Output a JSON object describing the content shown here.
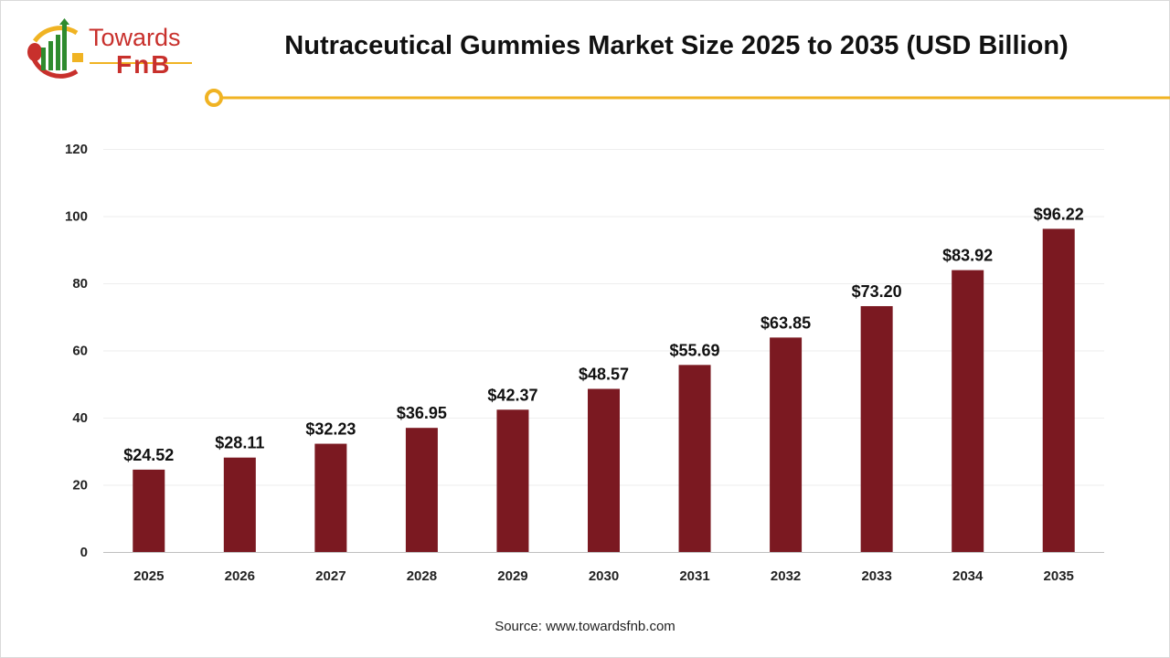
{
  "logo": {
    "line1": "Towards",
    "line2": "FnB"
  },
  "source": "Source: www.towardsfnb.com",
  "colors": {
    "bar": "#7b1921",
    "accent": "#f0b323",
    "grid": "#eeeeee"
  },
  "chart_data": {
    "type": "bar",
    "title": "Nutraceutical Gummies Market Size 2025 to 2035 (USD Billion)",
    "categories": [
      "2025",
      "2026",
      "2027",
      "2028",
      "2029",
      "2030",
      "2031",
      "2032",
      "2033",
      "2034",
      "2035"
    ],
    "values": [
      24.52,
      28.11,
      32.23,
      36.95,
      42.37,
      48.57,
      55.69,
      63.85,
      73.2,
      83.92,
      96.22
    ],
    "data_labels": [
      "$24.52",
      "$28.11",
      "$32.23",
      "$36.95",
      "$42.37",
      "$48.57",
      "$55.69",
      "$63.85",
      "$73.20",
      "$83.92",
      "$96.22"
    ],
    "yticks": [
      0,
      20,
      40,
      60,
      80,
      100,
      120
    ],
    "ylim": [
      0,
      120
    ],
    "grid": true,
    "xlabel": "",
    "ylabel": ""
  }
}
